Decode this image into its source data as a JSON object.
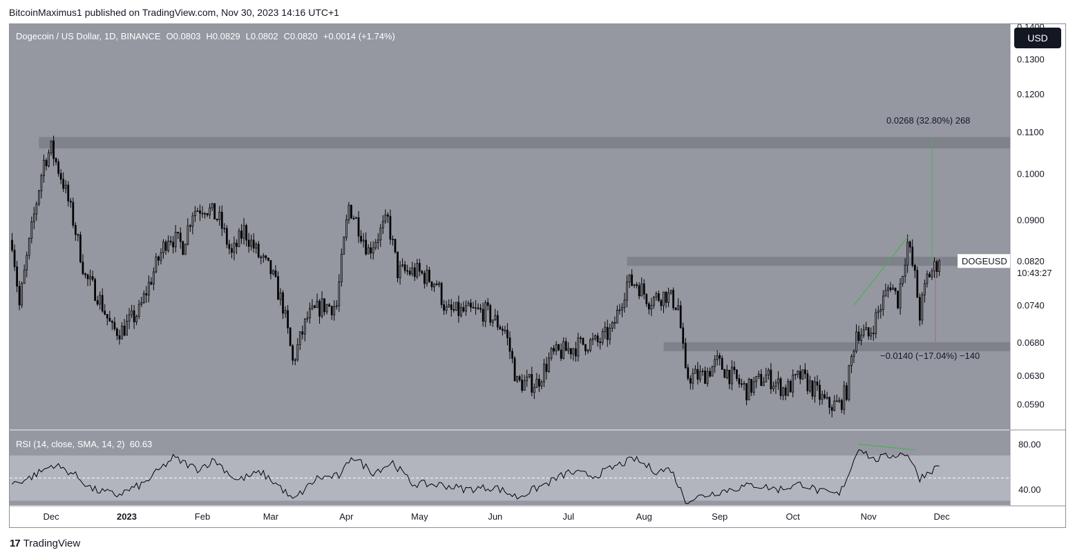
{
  "header": {
    "published": "BitcoinMaximus1 published on TradingView.com, Nov 30, 2023 14:16 UTC+1"
  },
  "legend": {
    "symbol": "Dogecoin / US Dollar, 1D, BINANCE",
    "o_label": "O",
    "o": "0.0803",
    "h_label": "H",
    "h": "0.0829",
    "l_label": "L",
    "l": "0.0802",
    "c_label": "C",
    "c": "0.0820",
    "change": "+0.0014 (+1.74%)"
  },
  "currency_button": "USD",
  "price_tag": {
    "symbol": "DOGEUSD",
    "price": "0.0820",
    "countdown": "10:43:27"
  },
  "measures": {
    "up": "0.0268 (32.80%) 268",
    "down": "−0.0140 (−17.04%) −140"
  },
  "rsi_legend": {
    "label": "RSI (14, close, SMA, 14, 2)",
    "value": "60.63"
  },
  "footer": {
    "brand": "TradingView"
  },
  "colors": {
    "pane_bg": "#9598a1",
    "band_bg": "#b2b5be",
    "zone": "#7b7e87",
    "candle": "#000000",
    "trend": "#4caf50",
    "axis_text": "#131722"
  },
  "chart_data": [
    {
      "type": "candlestick",
      "title": "Dogecoin / US Dollar, 1D, BINANCE",
      "x_ticks": [
        "Dec",
        "2023",
        "Feb",
        "Mar",
        "Apr",
        "May",
        "Jun",
        "Jul",
        "Aug",
        "Sep",
        "Oct",
        "Nov",
        "Dec"
      ],
      "y_ticks": [
        "0.1400",
        "0.1300",
        "0.1200",
        "0.1100",
        "0.1000",
        "0.0900",
        "0.0820",
        "0.0740",
        "0.0680",
        "0.0630",
        "0.0590"
      ],
      "y_scale": "log",
      "ylim": [
        0.0558,
        0.141
      ],
      "horizontal_zones": [
        {
          "from": "2022-11-26",
          "low": 0.1061,
          "high": 0.1089
        },
        {
          "from": "2023-07-25",
          "low": 0.0811,
          "high": 0.0828
        },
        {
          "from": "2023-08-09",
          "low": 0.0667,
          "high": 0.0681
        }
      ],
      "trendline": {
        "points": [
          [
            "2023-10-26",
            0.0741
          ],
          [
            "2023-11-17",
            0.0866
          ]
        ]
      },
      "measurements": [
        {
          "label": "0.0268 (32.80%) 268",
          "from": 0.0817,
          "to": 0.1085,
          "date": "2023-11-27"
        },
        {
          "label": "−0.0140 (−17.04%) −140",
          "from": 0.082,
          "to": 0.068,
          "date": "2023-11-27"
        }
      ],
      "close_path": [
        [
          "2022-11-15",
          0.086
        ],
        [
          "2022-11-18",
          0.074
        ],
        [
          "2022-11-23",
          0.088
        ],
        [
          "2022-11-28",
          0.103
        ],
        [
          "2022-12-01",
          0.106
        ],
        [
          "2022-12-06",
          0.098
        ],
        [
          "2022-12-10",
          0.09
        ],
        [
          "2022-12-15",
          0.079
        ],
        [
          "2022-12-20",
          0.076
        ],
        [
          "2022-12-26",
          0.07
        ],
        [
          "2022-12-30",
          0.07
        ],
        [
          "2023-01-06",
          0.073
        ],
        [
          "2023-01-12",
          0.08
        ],
        [
          "2023-01-18",
          0.087
        ],
        [
          "2023-01-24",
          0.085
        ],
        [
          "2023-01-28",
          0.092
        ],
        [
          "2023-02-02",
          0.093
        ],
        [
          "2023-02-08",
          0.09
        ],
        [
          "2023-02-13",
          0.083
        ],
        [
          "2023-02-18",
          0.088
        ],
        [
          "2023-02-24",
          0.083
        ],
        [
          "2023-03-01",
          0.08
        ],
        [
          "2023-03-06",
          0.074
        ],
        [
          "2023-03-10",
          0.065
        ],
        [
          "2023-03-16",
          0.072
        ],
        [
          "2023-03-22",
          0.074
        ],
        [
          "2023-03-28",
          0.074
        ],
        [
          "2023-04-02",
          0.093
        ],
        [
          "2023-04-05",
          0.09
        ],
        [
          "2023-04-10",
          0.084
        ],
        [
          "2023-04-18",
          0.09
        ],
        [
          "2023-04-22",
          0.08
        ],
        [
          "2023-04-30",
          0.08
        ],
        [
          "2023-05-08",
          0.078
        ],
        [
          "2023-05-12",
          0.073
        ],
        [
          "2023-05-20",
          0.073
        ],
        [
          "2023-05-28",
          0.073
        ],
        [
          "2023-06-05",
          0.07
        ],
        [
          "2023-06-10",
          0.062
        ],
        [
          "2023-06-18",
          0.062
        ],
        [
          "2023-06-24",
          0.066
        ],
        [
          "2023-07-01",
          0.067
        ],
        [
          "2023-07-08",
          0.068
        ],
        [
          "2023-07-13",
          0.068
        ],
        [
          "2023-07-19",
          0.07
        ],
        [
          "2023-07-25",
          0.078
        ],
        [
          "2023-07-29",
          0.078
        ],
        [
          "2023-08-03",
          0.075
        ],
        [
          "2023-08-10",
          0.076
        ],
        [
          "2023-08-15",
          0.074
        ],
        [
          "2023-08-18",
          0.063
        ],
        [
          "2023-08-25",
          0.063
        ],
        [
          "2023-08-31",
          0.065
        ],
        [
          "2023-09-06",
          0.063
        ],
        [
          "2023-09-12",
          0.061
        ],
        [
          "2023-09-20",
          0.063
        ],
        [
          "2023-09-28",
          0.061
        ],
        [
          "2023-10-04",
          0.063
        ],
        [
          "2023-10-10",
          0.061
        ],
        [
          "2023-10-15",
          0.059
        ],
        [
          "2023-10-20",
          0.059
        ],
        [
          "2023-10-23",
          0.061
        ],
        [
          "2023-10-27",
          0.07
        ],
        [
          "2023-11-01",
          0.069
        ],
        [
          "2023-11-06",
          0.074
        ],
        [
          "2023-11-10",
          0.078
        ],
        [
          "2023-11-13",
          0.075
        ],
        [
          "2023-11-17",
          0.0855
        ],
        [
          "2023-11-20",
          0.079
        ],
        [
          "2023-11-22",
          0.0725
        ],
        [
          "2023-11-25",
          0.079
        ],
        [
          "2023-11-30",
          0.082
        ]
      ],
      "last_close": 0.082
    },
    {
      "type": "line",
      "title": "RSI (14, close, SMA, 14, 2)",
      "y_ticks": [
        "80.00",
        "40.00"
      ],
      "ylim": [
        26,
        92
      ],
      "band": [
        30,
        70
      ],
      "midline": 50,
      "last_value": 60.63,
      "values": [
        [
          "2022-11-15",
          45
        ],
        [
          "2022-11-22",
          50
        ],
        [
          "2022-12-02",
          62
        ],
        [
          "2022-12-10",
          54
        ],
        [
          "2022-12-18",
          40
        ],
        [
          "2022-12-28",
          35
        ],
        [
          "2023-01-08",
          45
        ],
        [
          "2023-01-20",
          68
        ],
        [
          "2023-01-30",
          58
        ],
        [
          "2023-02-06",
          66
        ],
        [
          "2023-02-15",
          48
        ],
        [
          "2023-02-25",
          55
        ],
        [
          "2023-03-05",
          42
        ],
        [
          "2023-03-10",
          30
        ],
        [
          "2023-03-20",
          50
        ],
        [
          "2023-03-30",
          52
        ],
        [
          "2023-04-03",
          70
        ],
        [
          "2023-04-12",
          55
        ],
        [
          "2023-04-20",
          64
        ],
        [
          "2023-04-28",
          45
        ],
        [
          "2023-05-10",
          44
        ],
        [
          "2023-05-20",
          40
        ],
        [
          "2023-06-01",
          42
        ],
        [
          "2023-06-10",
          33
        ],
        [
          "2023-06-22",
          45
        ],
        [
          "2023-07-01",
          55
        ],
        [
          "2023-07-12",
          52
        ],
        [
          "2023-07-22",
          62
        ],
        [
          "2023-07-28",
          67
        ],
        [
          "2023-08-06",
          56
        ],
        [
          "2023-08-12",
          58
        ],
        [
          "2023-08-18",
          30
        ],
        [
          "2023-08-28",
          36
        ],
        [
          "2023-09-05",
          40
        ],
        [
          "2023-09-15",
          44
        ],
        [
          "2023-09-25",
          40
        ],
        [
          "2023-10-05",
          45
        ],
        [
          "2023-10-12",
          38
        ],
        [
          "2023-10-20",
          35
        ],
        [
          "2023-10-25",
          60
        ],
        [
          "2023-10-28",
          78
        ],
        [
          "2023-11-03",
          66
        ],
        [
          "2023-11-10",
          70
        ],
        [
          "2023-11-17",
          72
        ],
        [
          "2023-11-20",
          58
        ],
        [
          "2023-11-22",
          50
        ],
        [
          "2023-11-26",
          56
        ],
        [
          "2023-11-30",
          60.63
        ]
      ],
      "trendline": {
        "points": [
          [
            "2023-10-28",
            80
          ],
          [
            "2023-11-20",
            75
          ]
        ]
      }
    }
  ]
}
